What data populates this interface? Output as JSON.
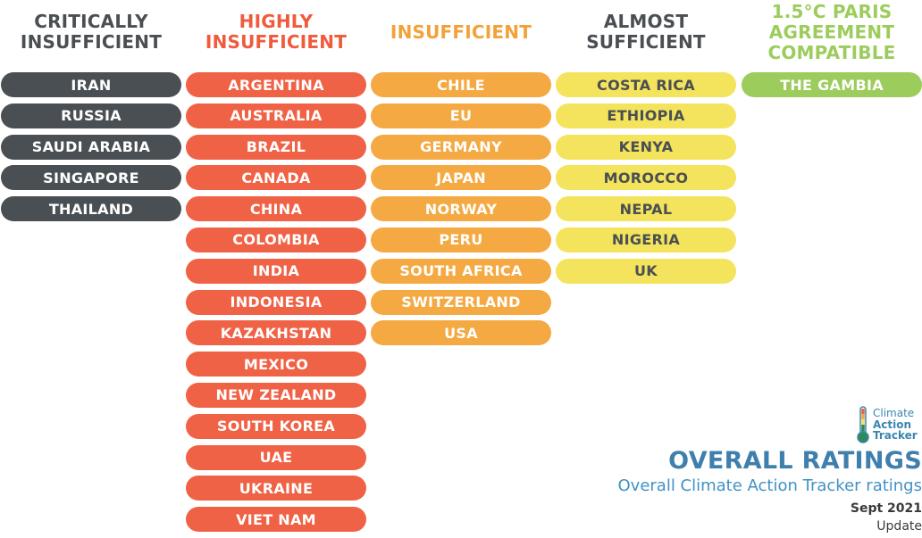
{
  "columns": [
    {
      "id": "col-critical",
      "heading": "CRITICALLY\nINSUFFICIENT",
      "countries": [
        "IRAN",
        "RUSSIA",
        "SAUDI ARABIA",
        "SINGAPORE",
        "THAILAND"
      ]
    },
    {
      "id": "col-highly",
      "heading": "HIGHLY\nINSUFFICIENT",
      "countries": [
        "ARGENTINA",
        "AUSTRALIA",
        "BRAZIL",
        "CANADA",
        "CHINA",
        "COLOMBIA",
        "INDIA",
        "INDONESIA",
        "KAZAKHSTAN",
        "MEXICO",
        "NEW ZEALAND",
        "SOUTH KOREA",
        "UAE",
        "UKRAINE",
        "VIET NAM"
      ]
    },
    {
      "id": "col-insufficient",
      "heading": "INSUFFICIENT",
      "countries": [
        "CHILE",
        "EU",
        "GERMANY",
        "JAPAN",
        "NORWAY",
        "PERU",
        "SOUTH AFRICA",
        "SWITZERLAND",
        "USA"
      ]
    },
    {
      "id": "col-almost",
      "heading": "ALMOST\nSUFFICIENT",
      "countries": [
        "COSTA RICA",
        "ETHIOPIA",
        "KENYA",
        "MOROCCO",
        "NEPAL",
        "NIGERIA",
        "UK"
      ]
    },
    {
      "id": "col-paris",
      "heading": "1.5°C PARIS\nAGREEMENT\nCOMPATIBLE",
      "countries": [
        "THE GAMBIA"
      ]
    }
  ],
  "logo": {
    "line1": "Climate",
    "line2": "Action",
    "line3": "Tracker",
    "icon": "thermometer-icon"
  },
  "footer": {
    "title": "OVERALL RATINGS",
    "subtitle": "Overall Climate Action Tracker ratings",
    "date": "Sept 2021",
    "update": "Update"
  }
}
